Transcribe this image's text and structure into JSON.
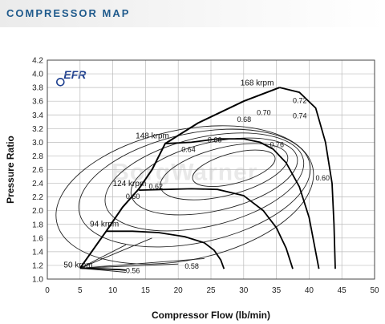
{
  "header": {
    "title": "COMPRESSOR MAP"
  },
  "logo": {
    "text": "EFR",
    "watermark": "BorgWarner"
  },
  "chart_data": {
    "type": "line",
    "xlabel": "Compressor Flow (lb/min)",
    "ylabel": "Pressure Ratio",
    "xlim": [
      0,
      50
    ],
    "ylim": [
      1.0,
      4.2
    ],
    "xticks": [
      0,
      5,
      10,
      15,
      20,
      25,
      30,
      35,
      40,
      45,
      50
    ],
    "yticks": [
      1.0,
      1.2,
      1.4,
      1.6,
      1.8,
      2.0,
      2.2,
      2.4,
      2.6,
      2.8,
      3.0,
      3.2,
      3.4,
      3.6,
      3.8,
      4.0,
      4.2
    ],
    "grid": true,
    "surge_line": [
      [
        5,
        1.16
      ],
      [
        7,
        1.43
      ],
      [
        9,
        1.7
      ],
      [
        11.5,
        2.05
      ],
      [
        14,
        2.32
      ],
      [
        16,
        2.6
      ],
      [
        18,
        2.98
      ],
      [
        23,
        3.28
      ],
      [
        30,
        3.6
      ],
      [
        35.5,
        3.8
      ]
    ],
    "speed_lines": [
      {
        "label": "50 krpm",
        "points": [
          [
            5,
            1.16
          ],
          [
            8,
            1.15
          ],
          [
            11,
            1.14
          ],
          [
            12,
            1.13
          ]
        ]
      },
      {
        "label": "94 krpm",
        "points": [
          [
            9,
            1.7
          ],
          [
            13,
            1.7
          ],
          [
            17,
            1.68
          ],
          [
            21,
            1.62
          ],
          [
            24,
            1.53
          ],
          [
            25.5,
            1.42
          ],
          [
            26.5,
            1.28
          ],
          [
            27,
            1.15
          ]
        ]
      },
      {
        "label": "124 krpm",
        "points": [
          [
            14,
            2.3
          ],
          [
            18,
            2.31
          ],
          [
            22,
            2.32
          ],
          [
            26,
            2.31
          ],
          [
            30,
            2.22
          ],
          [
            33,
            2.0
          ],
          [
            35,
            1.75
          ],
          [
            36.5,
            1.45
          ],
          [
            37.5,
            1.15
          ]
        ]
      },
      {
        "label": "148 krpm",
        "points": [
          [
            18,
            2.98
          ],
          [
            22,
            3.0
          ],
          [
            26,
            3.05
          ],
          [
            30,
            3.05
          ],
          [
            32.5,
            3.0
          ],
          [
            34.5,
            2.9
          ],
          [
            36.5,
            2.7
          ],
          [
            38.5,
            2.35
          ],
          [
            40,
            1.9
          ],
          [
            41.5,
            1.15
          ]
        ]
      },
      {
        "label": "168 krpm",
        "points": [
          [
            35.5,
            3.8
          ],
          [
            38.5,
            3.73
          ],
          [
            41,
            3.5
          ],
          [
            42.5,
            3.0
          ],
          [
            43.5,
            2.4
          ],
          [
            43.8,
            1.8
          ],
          [
            44,
            1.15
          ]
        ]
      }
    ],
    "efficiency_labels": [
      {
        "label": "0.56",
        "x": 12,
        "y": 1.09
      },
      {
        "label": "0.58",
        "x": 21,
        "y": 1.15
      },
      {
        "label": "0.60",
        "x": 12,
        "y": 2.17
      },
      {
        "label": "0.62",
        "x": 15.5,
        "y": 2.32
      },
      {
        "label": "0.64",
        "x": 20.5,
        "y": 2.86
      },
      {
        "label": "0.66",
        "x": 24.5,
        "y": 3.0
      },
      {
        "label": "0.68",
        "x": 29,
        "y": 3.3
      },
      {
        "label": "0.70",
        "x": 32,
        "y": 3.4
      },
      {
        "label": "0.72",
        "x": 37.5,
        "y": 3.57
      },
      {
        "label": "0.74",
        "x": 37.5,
        "y": 3.35
      },
      {
        "label": "0.76",
        "x": 34,
        "y": 2.93
      },
      {
        "label": "0.60",
        "x": 41,
        "y": 2.44
      }
    ],
    "speed_label_positions": [
      {
        "label": "168 krpm",
        "x": 29.5,
        "y": 3.83
      },
      {
        "label": "148 krpm",
        "x": 13.5,
        "y": 3.06
      },
      {
        "label": "124 krpm",
        "x": 10,
        "y": 2.36
      },
      {
        "label": "94 krpm",
        "x": 6.5,
        "y": 1.77
      },
      {
        "label": "50 krpm",
        "x": 2.5,
        "y": 1.17
      }
    ]
  }
}
